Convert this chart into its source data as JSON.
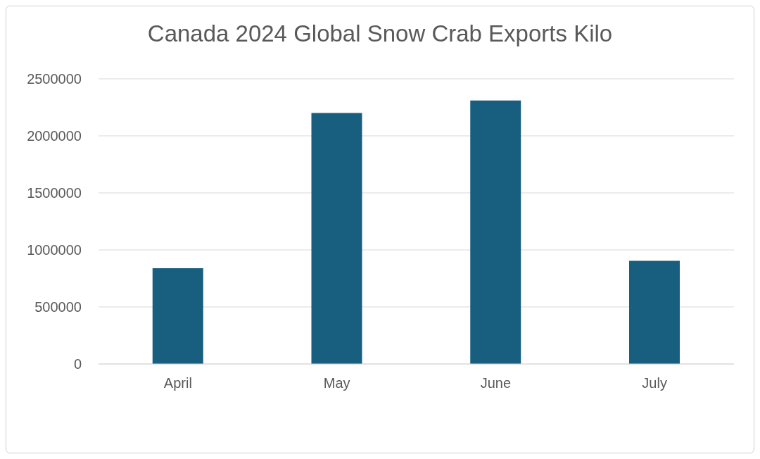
{
  "chart_data": {
    "type": "bar",
    "title": "Canada 2024 Global Snow Crab Exports  Kilo",
    "categories": [
      "April",
      "May",
      "June",
      "July"
    ],
    "values": [
      840000,
      2200000,
      2310000,
      905000
    ],
    "color": "#175e7f",
    "ylim": [
      0,
      2500000
    ],
    "yticks": [
      0,
      500000,
      1000000,
      1500000,
      2000000,
      2500000
    ],
    "grid": "y",
    "legend": false
  }
}
